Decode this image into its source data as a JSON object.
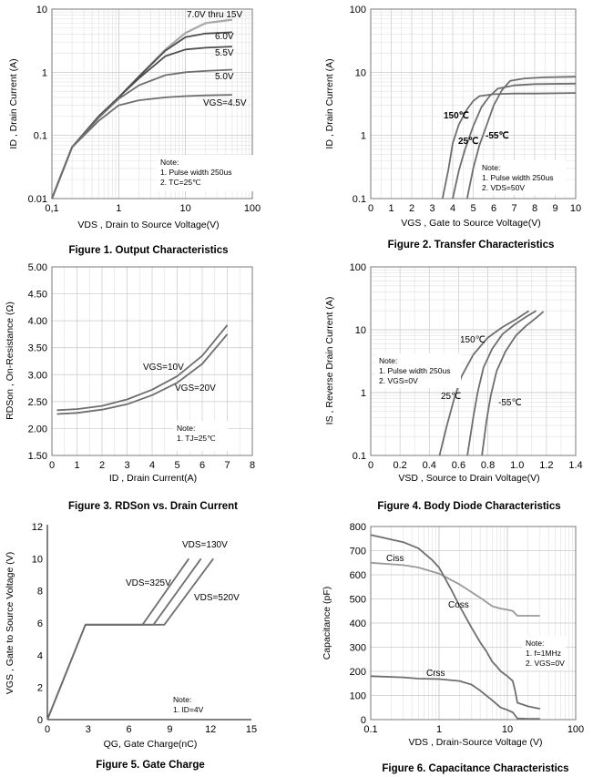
{
  "chart_data": [
    {
      "type": "line",
      "caption": "Figure 1. Output Characteristics",
      "xlabel": "VDS , Drain to Source Voltage(V)",
      "ylabel": "ID , Drain Current (A)",
      "xscale": "log",
      "yscale": "log",
      "xlim": [
        0.1,
        100
      ],
      "ylim": [
        0.01,
        10
      ],
      "xticks": [
        "0,1",
        "1",
        "10",
        "100"
      ],
      "yticks": [
        "0.01",
        "0.1",
        "1",
        "10"
      ],
      "grid": true,
      "series": [
        {
          "name": "7.0V thru 15V",
          "x": [
            0.1,
            0.2,
            0.5,
            1,
            2,
            5,
            10,
            20,
            50
          ],
          "y": [
            0.01,
            0.065,
            0.2,
            0.4,
            0.85,
            2.3,
            4.2,
            6.0,
            6.8
          ]
        },
        {
          "name": "6.0V",
          "x": [
            0.1,
            0.2,
            0.5,
            1,
            2,
            5,
            10,
            20,
            50
          ],
          "y": [
            0.01,
            0.065,
            0.2,
            0.4,
            0.85,
            2.2,
            3.6,
            4.1,
            4.3
          ]
        },
        {
          "name": "5.5V",
          "x": [
            0.1,
            0.2,
            0.5,
            1,
            2,
            5,
            10,
            20,
            50
          ],
          "y": [
            0.01,
            0.065,
            0.2,
            0.4,
            0.8,
            1.8,
            2.3,
            2.45,
            2.55
          ]
        },
        {
          "name": "5.0V",
          "x": [
            0.1,
            0.2,
            0.5,
            1,
            2,
            5,
            10,
            20,
            50
          ],
          "y": [
            0.01,
            0.065,
            0.19,
            0.38,
            0.62,
            0.9,
            1.0,
            1.05,
            1.1
          ]
        },
        {
          "name": "VGS=4.5V",
          "x": [
            0.1,
            0.2,
            0.5,
            1,
            2,
            5,
            10,
            20,
            50
          ],
          "y": [
            0.01,
            0.065,
            0.17,
            0.3,
            0.36,
            0.4,
            0.42,
            0.43,
            0.44
          ]
        }
      ],
      "notes": [
        "Note:",
        "1. Pulse width 250us",
        "2. TC=25℃"
      ]
    },
    {
      "type": "line",
      "caption": "Figure 2. Transfer Characteristics",
      "xlabel": "VGS , Gate to Source Voltage(V)",
      "ylabel": "ID , Drain Current (A)",
      "xscale": "linear",
      "yscale": "log",
      "xlim": [
        0,
        10
      ],
      "ylim": [
        0.1,
        100
      ],
      "xticks": [
        "0",
        "1",
        "2",
        "3",
        "4",
        "5",
        "6",
        "7",
        "8",
        "9",
        "10"
      ],
      "yticks": [
        "0.1",
        "1",
        "10",
        "100"
      ],
      "grid": true,
      "series": [
        {
          "name": "150℃",
          "x": [
            3.5,
            3.8,
            4.0,
            4.3,
            4.7,
            5.0,
            5.3,
            6.0,
            7.0,
            8.0,
            10.0
          ],
          "y": [
            0.1,
            0.3,
            0.75,
            1.5,
            2.6,
            3.5,
            4.2,
            4.5,
            4.6,
            4.6,
            4.7
          ]
        },
        {
          "name": "25℃",
          "x": [
            4.0,
            4.3,
            4.6,
            5.0,
            5.4,
            5.8,
            6.2,
            7.0,
            8.0,
            10.0
          ],
          "y": [
            0.1,
            0.28,
            0.6,
            1.4,
            2.8,
            4.2,
            5.5,
            6.2,
            6.5,
            6.6
          ]
        },
        {
          "name": "-55℃",
          "x": [
            4.7,
            5.0,
            5.3,
            5.7,
            6.0,
            6.4,
            6.8,
            7.5,
            8.5,
            10.0
          ],
          "y": [
            0.1,
            0.3,
            0.7,
            1.6,
            3.0,
            5.2,
            7.3,
            8.0,
            8.3,
            8.5
          ]
        }
      ],
      "notes": [
        "Note:",
        "1. Pulse width 250us",
        "2. VDS=50V"
      ]
    },
    {
      "type": "line",
      "caption": "Figure 3. RDSon vs. Drain Current",
      "xlabel": "ID , Drain Current(A)",
      "ylabel": "RDSon , On-Resistance (Ω)",
      "xscale": "linear",
      "yscale": "linear",
      "xlim": [
        0,
        8
      ],
      "ylim": [
        1.5,
        5.0
      ],
      "xticks": [
        "0",
        "1",
        "2",
        "3",
        "4",
        "5",
        "6",
        "7",
        "8"
      ],
      "yticks": [
        "1.50",
        "2.00",
        "2.50",
        "3.00",
        "3.50",
        "4.00",
        "4.50",
        "5.00"
      ],
      "grid": true,
      "series": [
        {
          "name": "VGS=10V",
          "x": [
            0.2,
            1,
            2,
            3,
            4,
            5,
            6,
            7
          ],
          "y": [
            2.34,
            2.36,
            2.42,
            2.54,
            2.72,
            2.97,
            3.35,
            3.92
          ]
        },
        {
          "name": "VGS=20V",
          "x": [
            0.2,
            1,
            2,
            3,
            4,
            5,
            6,
            7
          ],
          "y": [
            2.27,
            2.29,
            2.35,
            2.45,
            2.62,
            2.85,
            3.2,
            3.75
          ]
        }
      ],
      "notes": [
        "Note:",
        "1. TJ=25℃"
      ]
    },
    {
      "type": "line",
      "caption": "Figure 4. Body Diode Characteristics",
      "xlabel": "VSD , Source to Drain Voltage(V)",
      "ylabel": "IS , Reverse Drain Current (A)",
      "xscale": "linear",
      "yscale": "log",
      "xlim": [
        0,
        1.4
      ],
      "ylim": [
        0.1,
        100
      ],
      "xticks": [
        "0",
        "0.2",
        "0.4",
        "0.6",
        "0.8",
        "1.0",
        "1.2",
        "1.4"
      ],
      "yticks": [
        "0.1",
        "1",
        "10",
        "100"
      ],
      "grid": true,
      "series": [
        {
          "name": "150℃",
          "x": [
            0.47,
            0.52,
            0.57,
            0.62,
            0.7,
            0.8,
            0.9,
            1.0,
            1.08
          ],
          "y": [
            0.1,
            0.3,
            0.8,
            1.8,
            4.0,
            7.5,
            11.0,
            15.0,
            20.0
          ]
        },
        {
          "name": "25℃",
          "x": [
            0.66,
            0.7,
            0.73,
            0.77,
            0.83,
            0.9,
            0.98,
            1.06,
            1.13
          ],
          "y": [
            0.1,
            0.4,
            1.0,
            2.5,
            5.0,
            8.5,
            12.0,
            16.0,
            20.0
          ]
        },
        {
          "name": "-55℃",
          "x": [
            0.76,
            0.79,
            0.82,
            0.86,
            0.92,
            0.99,
            1.06,
            1.13,
            1.18
          ],
          "y": [
            0.1,
            0.35,
            0.9,
            2.2,
            4.5,
            8.0,
            11.5,
            15.5,
            19.5
          ]
        }
      ],
      "notes": [
        "Note:",
        "1. Pulse width 250us",
        "2. VGS=0V"
      ]
    },
    {
      "type": "line",
      "caption": "Figure 5. Gate Charge",
      "xlabel": "QG, Gate Charge(nC)",
      "ylabel": "VGS , Gate to Source Voltage (V)",
      "xscale": "linear",
      "yscale": "linear",
      "xlim": [
        0,
        15
      ],
      "ylim": [
        0,
        12
      ],
      "xticks": [
        "0",
        "3",
        "6",
        "9",
        "12",
        "15"
      ],
      "yticks": [
        "0",
        "2",
        "4",
        "6",
        "8",
        "10",
        "12"
      ],
      "grid": false,
      "series": [
        {
          "name": "VDS=130V",
          "x": [
            0,
            2.8,
            7.0,
            10.4
          ],
          "y": [
            0,
            5.9,
            5.9,
            10.0
          ]
        },
        {
          "name": "VDS=325V",
          "x": [
            0,
            2.8,
            7.8,
            11.3
          ],
          "y": [
            0,
            5.9,
            5.9,
            10.0
          ]
        },
        {
          "name": "VDS=520V",
          "x": [
            0,
            2.8,
            8.6,
            12.2
          ],
          "y": [
            0,
            5.9,
            5.9,
            10.0
          ]
        }
      ],
      "notes": [
        "Note:",
        "1. ID=4V"
      ]
    },
    {
      "type": "line",
      "caption": "Figure 6. Capacitance Characteristics",
      "xlabel": "VDS , Drain-Source Voltage (V)",
      "ylabel": "Capacitance (pF)",
      "xscale": "log",
      "yscale": "linear",
      "xlim": [
        0.1,
        100
      ],
      "ylim": [
        0,
        800
      ],
      "xticks": [
        "0.1",
        "1",
        "10",
        "100"
      ],
      "yticks": [
        "0",
        "100",
        "200",
        "300",
        "400",
        "500",
        "600",
        "700",
        "800"
      ],
      "grid": true,
      "series": [
        {
          "name": "Ciss",
          "x": [
            0.1,
            0.3,
            0.5,
            1,
            2,
            4,
            6,
            8,
            10,
            12,
            14,
            20,
            30
          ],
          "y": [
            650,
            640,
            630,
            605,
            560,
            505,
            470,
            460,
            455,
            450,
            430,
            430,
            430
          ]
        },
        {
          "name": "Coss",
          "x": [
            0.1,
            0.3,
            0.5,
            0.8,
            1,
            1.5,
            2,
            3,
            4,
            5,
            6,
            7,
            8,
            10,
            12,
            13,
            14,
            20,
            30
          ],
          "y": [
            765,
            735,
            710,
            660,
            630,
            540,
            470,
            380,
            320,
            280,
            240,
            220,
            200,
            180,
            160,
            120,
            70,
            55,
            45
          ]
        },
        {
          "name": "Crss",
          "x": [
            0.1,
            0.3,
            0.5,
            1,
            2,
            3,
            4,
            6,
            8,
            10,
            12,
            14,
            20,
            30
          ],
          "y": [
            180,
            175,
            170,
            168,
            160,
            145,
            120,
            80,
            50,
            40,
            30,
            5,
            3,
            3
          ]
        }
      ],
      "notes": [
        "Note:",
        "1. f=1MHz",
        "2. VGS=0V"
      ]
    }
  ]
}
